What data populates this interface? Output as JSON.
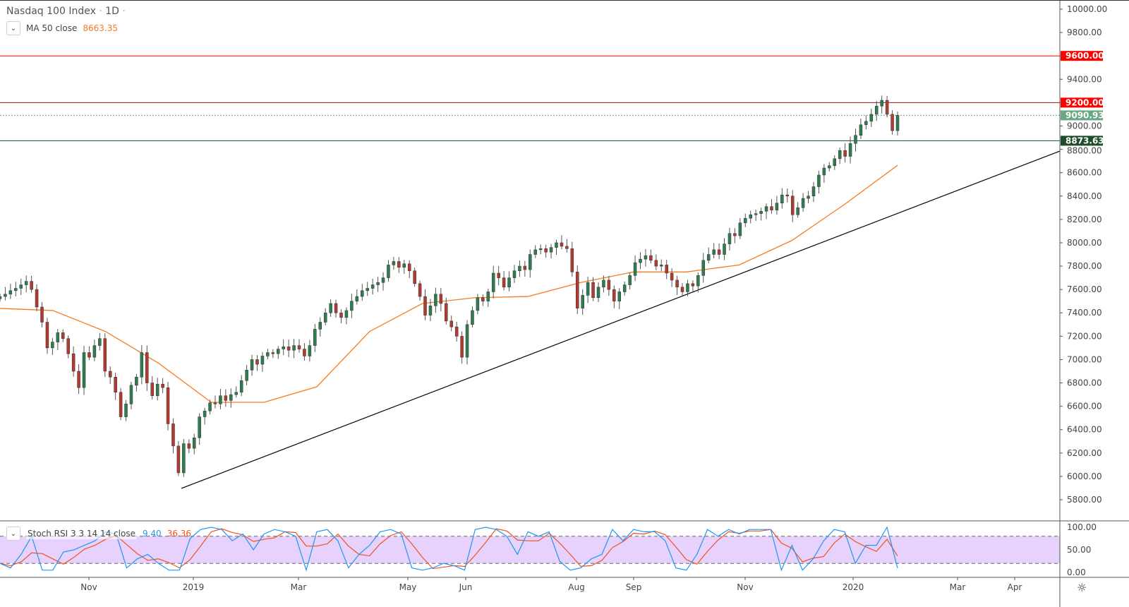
{
  "header": {
    "symbol": "Nasdaq 100 Index",
    "interval": "1D",
    "separator": "·"
  },
  "indicators": {
    "ma": {
      "label": "MA 50 close",
      "value": "8663.35",
      "color": "#f57c22"
    },
    "stoch": {
      "label": "Stoch RSI 3 3 14 14 close",
      "k_value": "9.40",
      "d_value": "36.36",
      "k_color": "#2196f3",
      "d_color": "#f4511e"
    }
  },
  "chart_data": [
    {
      "type": "candlestick",
      "title": "Nasdaq 100 Index",
      "ylim": [
        5700,
        10050
      ],
      "y_ticks": [
        "10000.00",
        "9800.00",
        "9600.00",
        "9400.00",
        "9200.00",
        "9000.00",
        "8800.00",
        "8600.00",
        "8400.00",
        "8200.00",
        "8000.00",
        "7800.00",
        "7600.00",
        "7400.00",
        "7200.00",
        "7000.00",
        "6800.00",
        "6600.00",
        "6400.00",
        "6200.00",
        "6000.00",
        "5800.00"
      ],
      "x_ticks": [
        "Nov",
        "2019",
        "Mar",
        "May",
        "Jun",
        "Aug",
        "Sep",
        "Nov",
        "2020",
        "Mar",
        "Apr"
      ],
      "up_color": "#2e7d4f",
      "down_color": "#b33a2e",
      "closes": [
        7540,
        7560,
        7590,
        7610,
        7640,
        7670,
        7600,
        7450,
        7320,
        7100,
        7150,
        7230,
        7180,
        7050,
        6900,
        6760,
        7060,
        7020,
        7120,
        7180,
        6900,
        6850,
        6720,
        6510,
        6620,
        6780,
        6850,
        7060,
        6800,
        6690,
        6790,
        6760,
        6450,
        6260,
        6030,
        6280,
        6240,
        6330,
        6510,
        6560,
        6630,
        6620,
        6690,
        6650,
        6700,
        6720,
        6820,
        6910,
        7000,
        6960,
        7030,
        7060,
        7050,
        7090,
        7110,
        7080,
        7120,
        7090,
        7030,
        7120,
        7260,
        7320,
        7400,
        7480,
        7400,
        7360,
        7420,
        7500,
        7540,
        7590,
        7610,
        7640,
        7660,
        7700,
        7810,
        7840,
        7790,
        7820,
        7760,
        7650,
        7540,
        7380,
        7460,
        7560,
        7480,
        7330,
        7280,
        7200,
        7020,
        7300,
        7420,
        7530,
        7500,
        7580,
        7740,
        7700,
        7620,
        7700,
        7760,
        7800,
        7770,
        7900,
        7940,
        7950,
        7920,
        7960,
        8000,
        7970,
        7950,
        7750,
        7440,
        7550,
        7660,
        7530,
        7620,
        7680,
        7600,
        7500,
        7580,
        7640,
        7720,
        7830,
        7860,
        7890,
        7850,
        7800,
        7810,
        7740,
        7680,
        7620,
        7580,
        7650,
        7630,
        7720,
        7850,
        7900,
        7940,
        7900,
        7990,
        8080,
        8060,
        8170,
        8210,
        8240,
        8250,
        8270,
        8310,
        8280,
        8340,
        8410,
        8400,
        8240,
        8300,
        8380,
        8400,
        8480,
        8580,
        8640,
        8660,
        8720,
        8790,
        8740,
        8850,
        8920,
        9010,
        9040,
        9100,
        9170,
        9220,
        9100,
        8960,
        9090.93
      ],
      "ma50": [
        7438,
        7420,
        7240,
        6970,
        6634,
        6634,
        6767,
        7240,
        7480,
        7530,
        7540,
        7660,
        7750,
        7750,
        7810,
        8020,
        8330,
        8663.35
      ],
      "trendline": {
        "from": 5897,
        "to_at_right_edge": 8785,
        "color": "#000000"
      },
      "levels": [
        {
          "value": 9600,
          "label": "9600.00",
          "color": "#ff0000",
          "style": "solid"
        },
        {
          "value": 9200,
          "label": "9200.00",
          "color": "#ff0000",
          "line_color": "#8b1a1a",
          "style": "solid"
        },
        {
          "value": 9090.93,
          "label": "9090.93",
          "color": "#6aa784",
          "style": "dotted"
        },
        {
          "value": 8873.63,
          "label": "8873.63",
          "color": "#1f4d2b",
          "style": "solid"
        }
      ]
    },
    {
      "type": "line",
      "title": "Stoch RSI 3 3 14 14 close",
      "ylim": [
        0,
        100
      ],
      "y_ticks": [
        "100.00",
        "50.00",
        "0.00"
      ],
      "band": [
        20,
        80
      ],
      "band_color": "#e6d2fc",
      "k": [
        20,
        10,
        40,
        80,
        5,
        5,
        45,
        50,
        60,
        70,
        90,
        85,
        10,
        30,
        40,
        20,
        5,
        5,
        75,
        95,
        100,
        95,
        70,
        85,
        50,
        85,
        95,
        90,
        80,
        5,
        90,
        95,
        70,
        10,
        40,
        60,
        90,
        95,
        85,
        10,
        5,
        10,
        20,
        15,
        5,
        95,
        100,
        95,
        80,
        40,
        90,
        80,
        90,
        25,
        5,
        10,
        30,
        40,
        95,
        70,
        95,
        90,
        90,
        70,
        10,
        5,
        40,
        95,
        80,
        95,
        85,
        95,
        95,
        95,
        5,
        60,
        5,
        30,
        70,
        95,
        90,
        20,
        60,
        60,
        100,
        9.4
      ]
    }
  ]
}
